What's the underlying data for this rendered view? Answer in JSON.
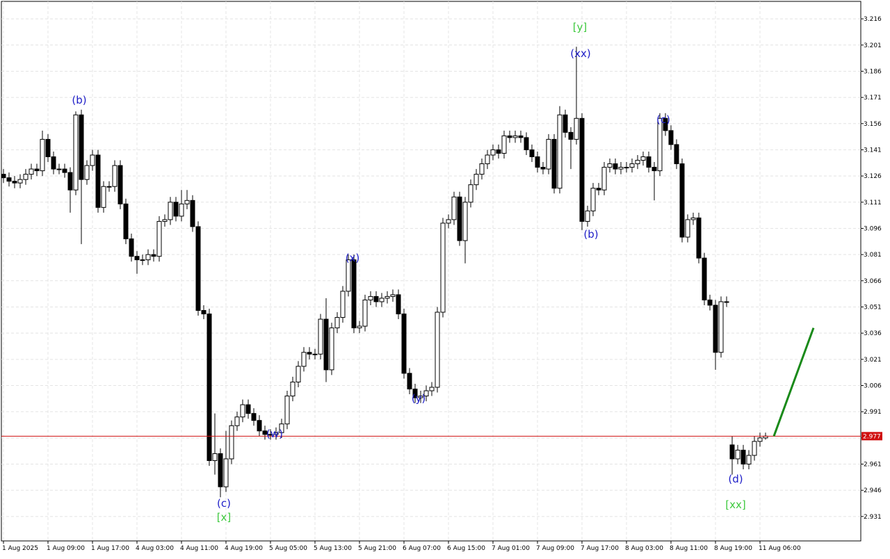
{
  "chart_data": {
    "type": "candlestick",
    "categories": [
      "1 Aug 2025",
      null,
      null,
      null,
      null,
      null,
      null,
      null,
      "1 Aug 09:00",
      null,
      null,
      null,
      null,
      null,
      null,
      null,
      "1 Aug 17:00",
      null,
      null,
      null,
      null,
      null,
      null,
      null,
      "4 Aug 03:00",
      null,
      null,
      null,
      null,
      null,
      null,
      null,
      "4 Aug 11:00",
      null,
      null,
      null,
      null,
      null,
      null,
      null,
      "4 Aug 19:00",
      null,
      null,
      null,
      null,
      null,
      null,
      null,
      "5 Aug 05:00",
      null,
      null,
      null,
      null,
      null,
      null,
      null,
      "5 Aug 13:00",
      null,
      null,
      null,
      null,
      null,
      null,
      null,
      "5 Aug 21:00",
      null,
      null,
      null,
      null,
      null,
      null,
      null,
      "6 Aug 07:00",
      null,
      null,
      null,
      null,
      null,
      null,
      null,
      "6 Aug 15:00",
      null,
      null,
      null,
      null,
      null,
      null,
      null,
      "7 Aug 01:00",
      null,
      null,
      null,
      null,
      null,
      null,
      null,
      "7 Aug 09:00",
      null,
      null,
      null,
      null,
      null,
      null,
      null,
      "7 Aug 17:00",
      null,
      null,
      null,
      null,
      null,
      null,
      null,
      "8 Aug 03:00",
      null,
      null,
      null,
      null,
      null,
      null,
      null,
      "8 Aug 11:00",
      null,
      null,
      null,
      null,
      null,
      null,
      null,
      "8 Aug 19:00",
      null,
      null,
      null,
      null,
      null,
      null,
      null,
      "11 Aug 06:00",
      null
    ],
    "open": [
      3.127,
      3.125,
      3.123,
      3.122,
      3.124,
      3.127,
      3.13,
      3.129,
      3.147,
      3.137,
      3.13,
      3.13,
      3.128,
      3.118,
      3.161,
      3.124,
      3.132,
      3.138,
      3.108,
      3.12,
      3.12,
      3.132,
      3.11,
      3.09,
      3.08,
      3.078,
      3.078,
      3.081,
      3.08,
      3.1,
      3.101,
      3.111,
      3.103,
      3.11,
      3.112,
      3.097,
      3.049,
      3.047,
      2.963,
      2.967,
      2.948,
      2.964,
      2.983,
      2.988,
      2.995,
      2.99,
      2.986,
      2.98,
      2.978,
      2.978,
      2.979,
      2.984,
      3.0,
      3.008,
      3.017,
      3.025,
      3.024,
      3.024,
      3.044,
      3.015,
      3.039,
      3.045,
      3.06,
      3.078,
      3.039,
      3.04,
      3.055,
      3.057,
      3.054,
      3.056,
      3.057,
      3.058,
      3.047,
      3.013,
      3.004,
      2.999,
      3.0,
      3.003,
      3.005,
      3.048,
      3.099,
      3.101,
      3.114,
      3.089,
      3.111,
      3.121,
      3.127,
      3.133,
      3.138,
      3.141,
      3.139,
      3.149,
      3.148,
      3.149,
      3.148,
      3.141,
      3.137,
      3.131,
      3.13,
      3.147,
      3.119,
      3.161,
      3.151,
      3.147,
      3.159,
      3.1,
      3.106,
      3.119,
      3.118,
      3.131,
      3.133,
      3.13,
      3.131,
      3.131,
      3.133,
      3.135,
      3.137,
      3.131,
      3.129,
      3.159,
      3.152,
      3.144,
      3.133,
      3.091,
      3.101,
      3.102,
      3.079,
      3.055,
      3.052,
      3.025,
      3.054,
      2.972,
      2.964,
      2.969,
      2.961,
      2.966,
      2.974,
      2.976
    ],
    "high": [
      3.13,
      3.128,
      3.126,
      3.127,
      3.13,
      3.133,
      3.133,
      3.152,
      3.15,
      3.14,
      3.133,
      3.133,
      3.131,
      3.163,
      3.164,
      3.135,
      3.141,
      3.141,
      3.123,
      3.123,
      3.135,
      3.135,
      3.113,
      3.093,
      3.083,
      3.081,
      3.084,
      3.084,
      3.103,
      3.104,
      3.114,
      3.114,
      3.118,
      3.118,
      3.115,
      3.1,
      3.052,
      3.05,
      2.99,
      2.97,
      2.98,
      2.986,
      2.991,
      2.998,
      2.998,
      2.993,
      2.989,
      2.983,
      2.981,
      2.982,
      2.987,
      3.003,
      3.011,
      3.02,
      3.028,
      3.028,
      3.027,
      3.047,
      3.056,
      3.042,
      3.048,
      3.063,
      3.081,
      3.081,
      3.043,
      3.058,
      3.06,
      3.06,
      3.059,
      3.06,
      3.061,
      3.061,
      3.05,
      3.016,
      3.007,
      3.003,
      3.006,
      3.008,
      3.051,
      3.102,
      3.104,
      3.117,
      3.117,
      3.114,
      3.124,
      3.13,
      3.136,
      3.141,
      3.144,
      3.144,
      3.152,
      3.152,
      3.152,
      3.152,
      3.151,
      3.144,
      3.14,
      3.134,
      3.15,
      3.15,
      3.166,
      3.164,
      3.154,
      3.2,
      3.162,
      3.109,
      3.122,
      3.122,
      3.134,
      3.136,
      3.136,
      3.134,
      3.134,
      3.136,
      3.138,
      3.14,
      3.14,
      3.134,
      3.162,
      3.162,
      3.155,
      3.147,
      3.136,
      3.104,
      3.105,
      3.105,
      3.082,
      3.058,
      3.055,
      3.057,
      3.057,
      2.977,
      2.972,
      2.972,
      2.969,
      2.977,
      2.979,
      2.979
    ],
    "low": [
      3.122,
      3.12,
      3.119,
      3.119,
      3.121,
      3.124,
      3.126,
      3.126,
      3.134,
      3.127,
      3.127,
      3.125,
      3.105,
      3.115,
      3.087,
      3.121,
      3.129,
      3.105,
      3.105,
      3.117,
      3.117,
      3.107,
      3.087,
      3.077,
      3.07,
      3.075,
      3.075,
      3.077,
      3.077,
      3.097,
      3.098,
      3.1,
      3.1,
      3.107,
      3.094,
      3.046,
      3.044,
      2.96,
      2.955,
      2.942,
      2.945,
      2.961,
      2.98,
      2.985,
      2.987,
      2.983,
      2.977,
      2.975,
      2.975,
      2.975,
      2.976,
      2.981,
      2.997,
      3.005,
      3.014,
      3.021,
      3.021,
      3.021,
      3.008,
      3.012,
      3.036,
      3.042,
      3.057,
      3.036,
      3.036,
      3.037,
      3.052,
      3.051,
      3.051,
      3.053,
      3.054,
      3.044,
      3.01,
      3.001,
      2.996,
      2.996,
      2.997,
      3.0,
      3.002,
      3.045,
      3.096,
      3.098,
      3.086,
      3.076,
      3.108,
      3.118,
      3.124,
      3.13,
      3.135,
      3.136,
      3.136,
      3.145,
      3.145,
      3.145,
      3.138,
      3.134,
      3.128,
      3.127,
      3.127,
      3.116,
      3.116,
      3.148,
      3.13,
      3.144,
      3.095,
      3.097,
      3.103,
      3.115,
      3.115,
      3.128,
      3.127,
      3.127,
      3.128,
      3.128,
      3.13,
      3.132,
      3.128,
      3.112,
      3.126,
      3.149,
      3.141,
      3.13,
      3.088,
      3.088,
      3.098,
      3.076,
      3.052,
      3.049,
      3.015,
      3.022,
      3.051,
      2.955,
      2.961,
      2.958,
      2.958,
      2.963,
      2.971,
      2.975
    ],
    "close": [
      3.125,
      3.123,
      3.122,
      3.124,
      3.127,
      3.13,
      3.129,
      3.147,
      3.137,
      3.13,
      3.13,
      3.128,
      3.118,
      3.161,
      3.124,
      3.132,
      3.138,
      3.108,
      3.12,
      3.12,
      3.132,
      3.11,
      3.09,
      3.08,
      3.078,
      3.078,
      3.081,
      3.08,
      3.1,
      3.101,
      3.111,
      3.103,
      3.11,
      3.112,
      3.097,
      3.049,
      3.047,
      2.963,
      2.967,
      2.948,
      2.964,
      2.983,
      2.988,
      2.995,
      2.99,
      2.986,
      2.98,
      2.978,
      2.978,
      2.979,
      2.984,
      3.0,
      3.008,
      3.017,
      3.025,
      3.024,
      3.024,
      3.044,
      3.015,
      3.039,
      3.045,
      3.06,
      3.078,
      3.039,
      3.04,
      3.055,
      3.057,
      3.054,
      3.056,
      3.057,
      3.058,
      3.047,
      3.013,
      3.004,
      2.999,
      3.0,
      3.003,
      3.005,
      3.048,
      3.099,
      3.101,
      3.114,
      3.089,
      3.111,
      3.121,
      3.127,
      3.133,
      3.138,
      3.141,
      3.139,
      3.149,
      3.148,
      3.149,
      3.148,
      3.141,
      3.137,
      3.131,
      3.13,
      3.147,
      3.119,
      3.161,
      3.151,
      3.147,
      3.159,
      3.1,
      3.106,
      3.119,
      3.118,
      3.131,
      3.133,
      3.13,
      3.131,
      3.131,
      3.133,
      3.135,
      3.137,
      3.131,
      3.129,
      3.159,
      3.152,
      3.144,
      3.133,
      3.091,
      3.101,
      3.102,
      3.079,
      3.055,
      3.052,
      3.025,
      3.054,
      3.054,
      2.964,
      2.969,
      2.961,
      2.966,
      2.974,
      2.976,
      2.977
    ],
    "ylim": [
      2.917,
      3.226
    ],
    "yticks": [
      3.216,
      3.201,
      3.186,
      3.171,
      3.156,
      3.141,
      3.126,
      3.111,
      3.096,
      3.081,
      3.066,
      3.051,
      3.036,
      3.021,
      3.006,
      2.991,
      2.976,
      2.961,
      2.946,
      2.931
    ],
    "grid": true,
    "current_price": 2.977,
    "current_price_color": "#d01010",
    "forecast": {
      "values": [
        2.977,
        3.039
      ],
      "color": "#1a8a1a"
    },
    "annotations": [
      {
        "text": "(b)",
        "color": "#2020c8"
      },
      {
        "text": "(c)",
        "color": "#2020c8"
      },
      {
        "text": "[x]",
        "color": "#3ec93e"
      },
      {
        "text": "(w)",
        "color": "#2020c8"
      },
      {
        "text": "(x)",
        "color": "#2020c8"
      },
      {
        "text": "(y)",
        "color": "#2020c8"
      },
      {
        "text": "[y]",
        "color": "#3ec93e"
      },
      {
        "text": "(xx)",
        "color": "#2020c8"
      },
      {
        "text": "(b)",
        "color": "#2020c8"
      },
      {
        "text": "(c)",
        "color": "#2020c8"
      },
      {
        "text": "(d)",
        "color": "#2020c8"
      },
      {
        "text": "[xx]",
        "color": "#3ec93e"
      }
    ]
  }
}
